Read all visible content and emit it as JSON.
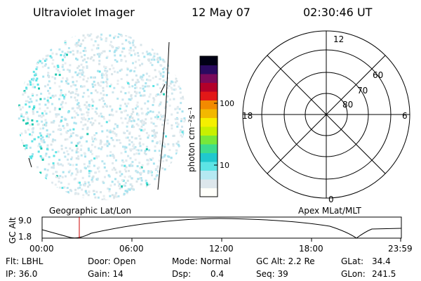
{
  "header": {
    "instrument": "Ultraviolet Imager",
    "date": "12 May 07",
    "time": "02:30:46 UT"
  },
  "colorbar": {
    "unit_label": "photon cm⁻²s⁻¹",
    "ticks": [
      "100",
      "10"
    ],
    "colors": [
      "#fffffa",
      "#dde7ec",
      "#b5e9f2",
      "#5de4e5",
      "#20c8ce",
      "#3ddc8d",
      "#78e839",
      "#c8f000",
      "#f5f000",
      "#f2b800",
      "#f28a00",
      "#e21818",
      "#b3002a",
      "#7a0a5b",
      "#2a0a60",
      "#000014"
    ]
  },
  "polar_plot": {
    "mlt_labels": {
      "top": "12",
      "bottom": "0",
      "left": "18",
      "right": "6"
    },
    "lat_labels": [
      "60",
      "70",
      "80"
    ]
  },
  "altitude_panel": {
    "left_title": "Geographic Lat/Lon",
    "right_title": "Apex MLat/MLT",
    "ylabel": "GC Alt",
    "y_ticks": [
      "9.0",
      "1.8"
    ],
    "x_ticks": [
      "00:00",
      "06:00",
      "12:00",
      "18:00",
      "23:59"
    ],
    "current_marker_time": "02:30"
  },
  "status": {
    "flt": "Flt: LBHL",
    "ip": "IP: 36.0",
    "door": "Door: Open",
    "gain": "Gain: 14",
    "mode": "Mode: Normal",
    "dsp_label": "Dsp:",
    "dsp_value": "0.4",
    "gc_alt": "GC Alt: 2.2 Re",
    "seq": "Seq: 39",
    "glat_label": "GLat:",
    "glat_value": "34.4",
    "glon_label": "GLon:",
    "glon_value": "241.5"
  }
}
